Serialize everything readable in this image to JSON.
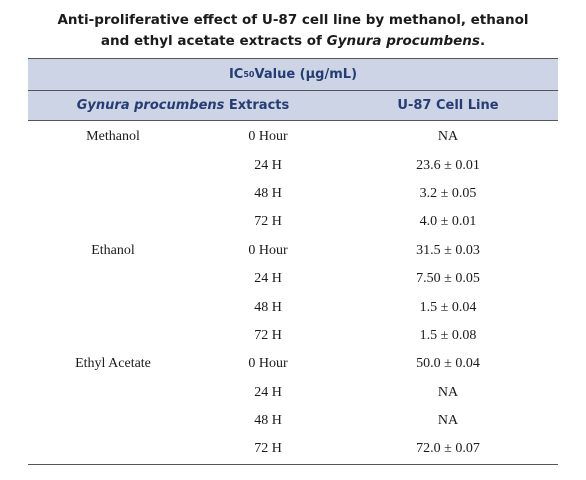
{
  "caption": {
    "line1": "Anti-proliferative effect of U-87 cell line by methanol, ethanol",
    "line2_prefix": "and ethyl acetate extracts of ",
    "line2_italic": "Gynura procumbens",
    "line2_suffix": "."
  },
  "header": {
    "ic": "IC",
    "ic_sub": "50",
    "ic_rest": " Value (μg/mL)",
    "col1_italic": "Gynura procumbens",
    "col1_rest": " Extracts",
    "col2": "U-87 Cell Line"
  },
  "rows": [
    {
      "extract": "Methanol",
      "time": "0 Hour",
      "value": "NA"
    },
    {
      "extract": "",
      "time": "24 H",
      "value": "23.6 ± 0.01"
    },
    {
      "extract": "",
      "time": "48 H",
      "value": "3.2 ± 0.05"
    },
    {
      "extract": "",
      "time": "72 H",
      "value": "4.0 ± 0.01"
    },
    {
      "extract": "Ethanol",
      "time": "0 Hour",
      "value": "31.5 ± 0.03"
    },
    {
      "extract": "",
      "time": "24 H",
      "value": "7.50 ± 0.05"
    },
    {
      "extract": "",
      "time": "48 H",
      "value": "1.5 ± 0.04"
    },
    {
      "extract": "",
      "time": "72 H",
      "value": "1.5 ± 0.08"
    },
    {
      "extract": "Ethyl Acetate",
      "time": "0 Hour",
      "value": "50.0 ± 0.04"
    },
    {
      "extract": "",
      "time": "24 H",
      "value": "NA"
    },
    {
      "extract": "",
      "time": "48 H",
      "value": "NA"
    },
    {
      "extract": "",
      "time": "72 H",
      "value": "72.0 ± 0.07"
    }
  ]
}
